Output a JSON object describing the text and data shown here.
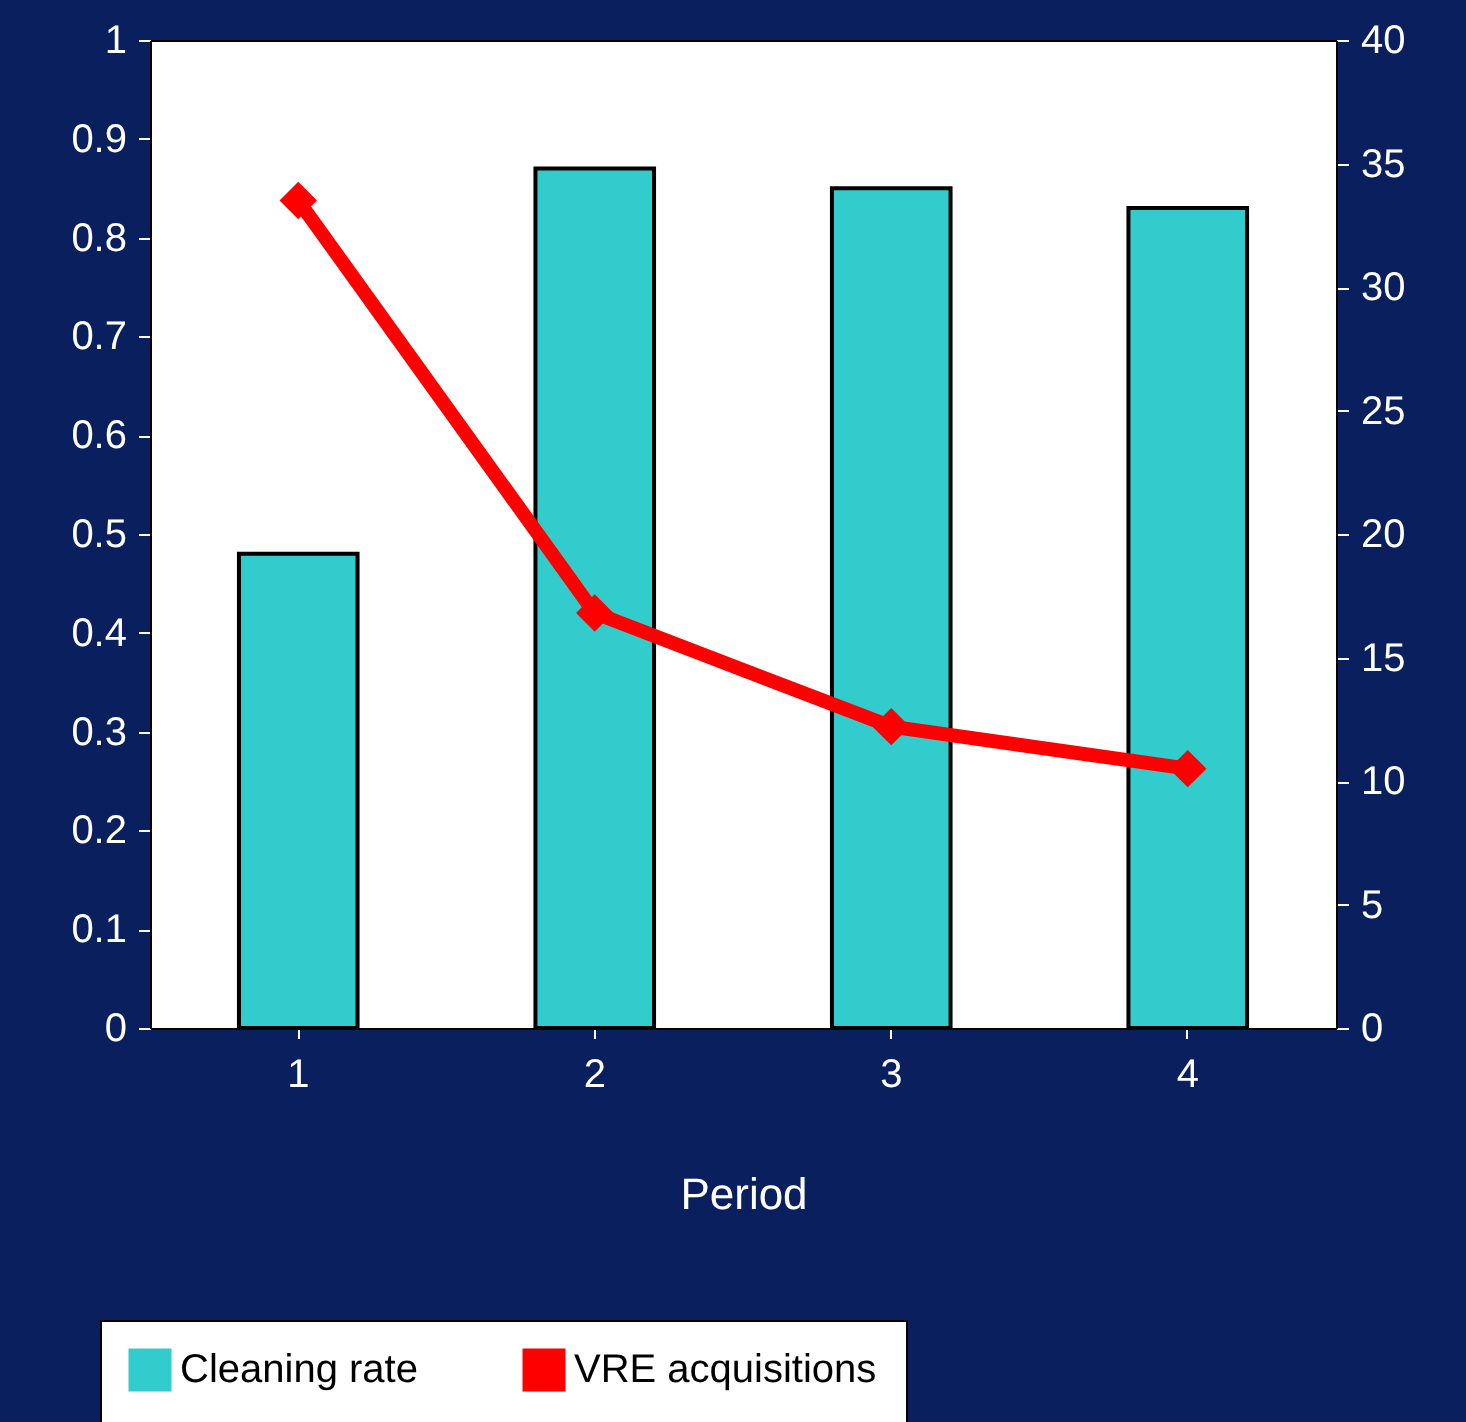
{
  "chart_data": {
    "type": "bar",
    "xlabel": "Period",
    "categories": [
      "1",
      "2",
      "3",
      "4"
    ],
    "series": [
      {
        "name": "Cleaning rate",
        "color": "#33cccc",
        "values": [
          0.48,
          0.87,
          0.85,
          0.83
        ]
      },
      {
        "name": "VRE acquisitions",
        "type": "line",
        "axis": "y2",
        "color": "#ff0000",
        "marker": "diamond",
        "values": [
          33.5,
          16.8,
          12.2,
          10.5
        ]
      }
    ],
    "ylim": [
      0,
      1
    ],
    "yticks": [
      0,
      0.1,
      0.2,
      0.3,
      0.4,
      0.5,
      0.6,
      0.7,
      0.8,
      0.9,
      1
    ],
    "y2lim": [
      0,
      40
    ],
    "y2ticks": [
      0,
      5,
      10,
      15,
      20,
      25,
      30,
      35,
      40
    ],
    "legend": "bottom"
  }
}
